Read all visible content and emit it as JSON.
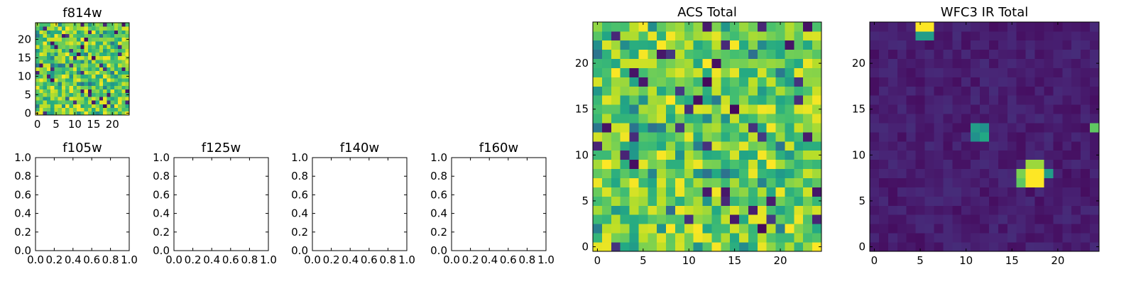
{
  "chart_data": [
    {
      "type": "heatmap",
      "title": "f814w",
      "grid_size": 25,
      "xlim": [
        -0.5,
        24.5
      ],
      "ylim": [
        -0.5,
        24.5
      ],
      "xticks": [
        0,
        5,
        10,
        15,
        20
      ],
      "yticks": [
        0,
        5,
        10,
        15,
        20
      ],
      "colormap": "viridis",
      "values_pattern": "noise",
      "seed": 7
    },
    {
      "type": "heatmap",
      "title": "f105w",
      "empty": true,
      "xlim": [
        0,
        1
      ],
      "ylim": [
        0,
        1
      ],
      "xticks": [
        "0.0",
        "0.2",
        "0.4",
        "0.6",
        "0.8",
        "1.0"
      ],
      "yticks": [
        "0.0",
        "0.2",
        "0.4",
        "0.6",
        "0.8",
        "1.0"
      ]
    },
    {
      "type": "heatmap",
      "title": "f125w",
      "empty": true,
      "xlim": [
        0,
        1
      ],
      "ylim": [
        0,
        1
      ],
      "xticks": [
        "0.0",
        "0.2",
        "0.4",
        "0.6",
        "0.8",
        "1.0"
      ],
      "yticks": [
        "0.0",
        "0.2",
        "0.4",
        "0.6",
        "0.8",
        "1.0"
      ]
    },
    {
      "type": "heatmap",
      "title": "f140w",
      "empty": true,
      "xlim": [
        0,
        1
      ],
      "ylim": [
        0,
        1
      ],
      "xticks": [
        "0.0",
        "0.2",
        "0.4",
        "0.6",
        "0.8",
        "1.0"
      ],
      "yticks": [
        "0.0",
        "0.2",
        "0.4",
        "0.6",
        "0.8",
        "1.0"
      ]
    },
    {
      "type": "heatmap",
      "title": "f160w",
      "empty": true,
      "xlim": [
        0,
        1
      ],
      "ylim": [
        0,
        1
      ],
      "xticks": [
        "0.0",
        "0.2",
        "0.4",
        "0.6",
        "0.8",
        "1.0"
      ],
      "yticks": [
        "0.0",
        "0.2",
        "0.4",
        "0.6",
        "0.8",
        "1.0"
      ]
    },
    {
      "type": "heatmap",
      "title": "ACS Total",
      "grid_size": 25,
      "xlim": [
        -0.5,
        24.5
      ],
      "ylim": [
        -0.5,
        24.5
      ],
      "xticks": [
        0,
        5,
        10,
        15,
        20
      ],
      "yticks": [
        0,
        5,
        10,
        15,
        20
      ],
      "colormap": "viridis",
      "values_pattern": "noise",
      "seed": 7
    },
    {
      "type": "heatmap",
      "title": "WFC3 IR Total",
      "grid_size": 25,
      "xlim": [
        -0.5,
        24.5
      ],
      "ylim": [
        -0.5,
        24.5
      ],
      "xticks": [
        0,
        5,
        10,
        15,
        20
      ],
      "yticks": [
        0,
        5,
        10,
        15,
        20
      ],
      "colormap": "viridis",
      "values_pattern": "sources",
      "seed": 42,
      "background_level": 0.08,
      "hot_pixels": [
        {
          "x": 5,
          "y": 24,
          "value": 1.0
        },
        {
          "x": 6,
          "y": 24,
          "value": 1.0
        },
        {
          "x": 5,
          "y": 23,
          "value": 0.55
        },
        {
          "x": 6,
          "y": 23,
          "value": 0.55
        },
        {
          "x": 11,
          "y": 13,
          "value": 0.55
        },
        {
          "x": 12,
          "y": 13,
          "value": 0.5
        },
        {
          "x": 11,
          "y": 12,
          "value": 0.5
        },
        {
          "x": 12,
          "y": 12,
          "value": 0.6
        },
        {
          "x": 17,
          "y": 9,
          "value": 0.85
        },
        {
          "x": 18,
          "y": 9,
          "value": 0.85
        },
        {
          "x": 16,
          "y": 8,
          "value": 0.8
        },
        {
          "x": 17,
          "y": 8,
          "value": 1.0
        },
        {
          "x": 18,
          "y": 8,
          "value": 1.0
        },
        {
          "x": 19,
          "y": 8,
          "value": 0.55
        },
        {
          "x": 16,
          "y": 7,
          "value": 0.75
        },
        {
          "x": 17,
          "y": 7,
          "value": 1.0
        },
        {
          "x": 18,
          "y": 7,
          "value": 1.0
        },
        {
          "x": 24,
          "y": 13,
          "value": 0.75
        }
      ]
    }
  ]
}
